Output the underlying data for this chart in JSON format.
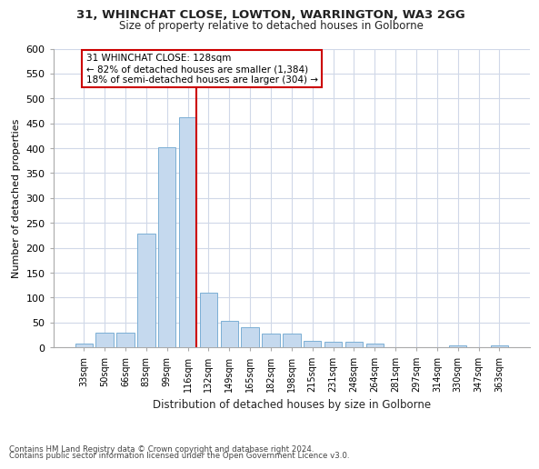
{
  "title1": "31, WHINCHAT CLOSE, LOWTON, WARRINGTON, WA3 2GG",
  "title2": "Size of property relative to detached houses in Golborne",
  "xlabel": "Distribution of detached houses by size in Golborne",
  "ylabel": "Number of detached properties",
  "categories": [
    "33sqm",
    "50sqm",
    "66sqm",
    "83sqm",
    "99sqm",
    "116sqm",
    "132sqm",
    "149sqm",
    "165sqm",
    "182sqm",
    "198sqm",
    "215sqm",
    "231sqm",
    "248sqm",
    "264sqm",
    "281sqm",
    "297sqm",
    "314sqm",
    "330sqm",
    "347sqm",
    "363sqm"
  ],
  "values": [
    7,
    30,
    30,
    228,
    402,
    463,
    110,
    54,
    40,
    27,
    27,
    14,
    12,
    12,
    7,
    0,
    0,
    0,
    5,
    0,
    5
  ],
  "bar_color": "#c5d9ee",
  "bar_edge_color": "#7bafd4",
  "vline_color": "#cc0000",
  "vline_pos": 6.0,
  "annot_line1": "31 WHINCHAT CLOSE: 128sqm",
  "annot_line2": "← 82% of detached houses are smaller (1,384)",
  "annot_line3": "18% of semi-detached houses are larger (304) →",
  "ylim": [
    0,
    600
  ],
  "yticks": [
    0,
    50,
    100,
    150,
    200,
    250,
    300,
    350,
    400,
    450,
    500,
    550,
    600
  ],
  "footnote1": "Contains HM Land Registry data © Crown copyright and database right 2024.",
  "footnote2": "Contains public sector information licensed under the Open Government Licence v3.0.",
  "bg_color": "#ffffff",
  "grid_color": "#d0d8e8"
}
